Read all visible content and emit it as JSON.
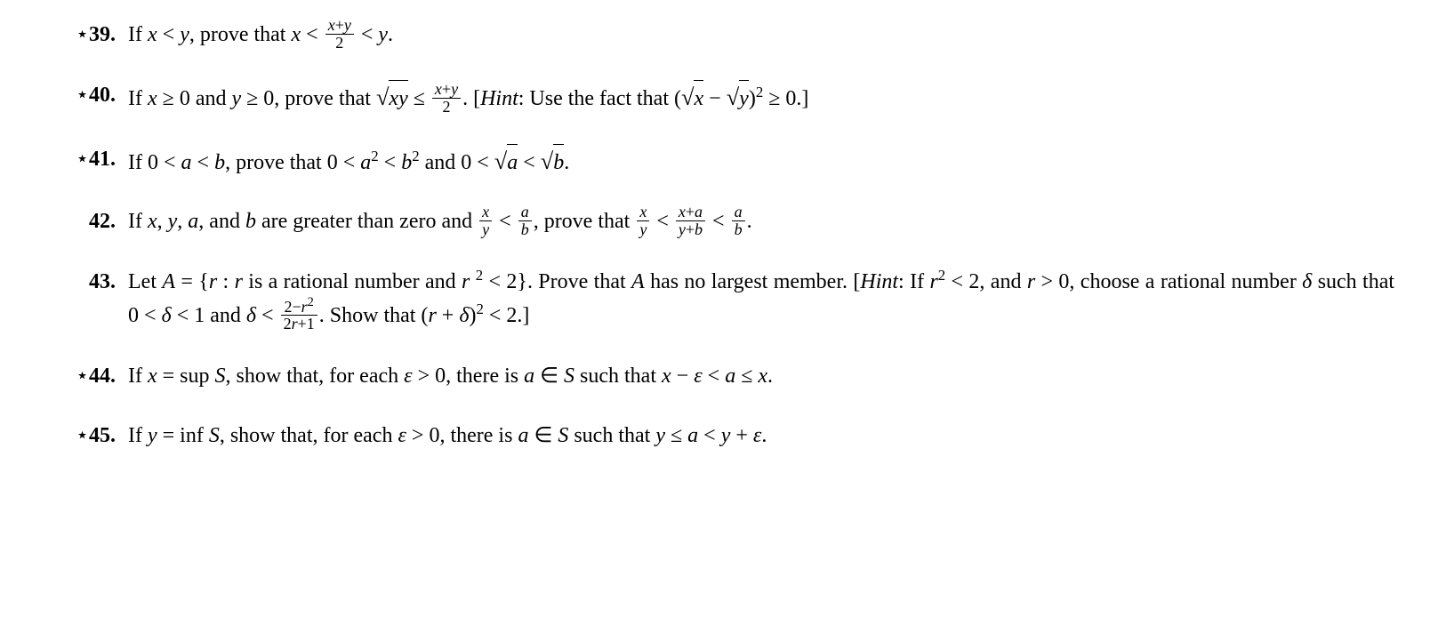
{
  "problems": [
    {
      "id": 39,
      "starred": true,
      "number_label": "39.",
      "html": "If <span class='mv'>x</span> &lt; <span class='mv'>y</span>, prove that <span class='mv'>x</span> &lt; <span class='frac'><span class='top'><span class=\"mv\">x</span>+<span class=\"mv\">y</span></span><span class='bot'>2</span></span> &lt; <span class='mv'>y</span>."
    },
    {
      "id": 40,
      "starred": true,
      "number_label": "40.",
      "html": "If <span class='mv'>x</span> &ge; 0 and <span class='mv'>y</span> &ge; 0, prove that <span class='sqrt'><span class='sqrt-sym'>&radic;</span><span class='sqrt-arg'><span class=\"mv\">xy</span></span></span> &le; <span class='frac'><span class='top'><span class=\"mv\">x</span>+<span class=\"mv\">y</span></span><span class='bot'>2</span></span>. [<span class='italic'>Hint</span>: Use the fact that (<span class='sqrt'><span class='sqrt-sym'>&radic;</span><span class='sqrt-arg'><span class=\"mv\">x</span></span></span> &minus; <span class='sqrt'><span class='sqrt-sym'>&radic;</span><span class='sqrt-arg'><span class=\"mv\">y</span></span></span>)<sup>2</sup> &ge; 0.]"
    },
    {
      "id": 41,
      "starred": true,
      "number_label": "41.",
      "html": "If 0 &lt; <span class='mv'>a</span> &lt; <span class='mv'>b</span>, prove that 0 &lt; <span class='mv'>a</span><sup>2</sup> &lt; <span class='mv'>b</span><sup>2</sup> and 0 &lt; <span class='sqrt'><span class='sqrt-sym'>&radic;</span><span class='sqrt-arg'><span class=\"mv\">a</span></span></span> &lt; <span class='sqrt'><span class='sqrt-sym'>&radic;</span><span class='sqrt-arg'><span class=\"mv\">b</span></span></span>."
    },
    {
      "id": 42,
      "starred": false,
      "number_label": "42.",
      "html": "If <span class='mv'>x</span>, <span class='mv'>y</span>, <span class='mv'>a</span>, and <span class='mv'>b</span> are greater than zero and <span class='frac'><span class='top'><span class=\"mv\">x</span></span><span class='bot'><span class=\"mv\">y</span></span></span> &lt; <span class='frac'><span class='top'><span class=\"mv\">a</span></span><span class='bot'><span class=\"mv\">b</span></span></span>, prove that <span class='frac'><span class='top'><span class=\"mv\">x</span></span><span class='bot'><span class=\"mv\">y</span></span></span> &lt; <span class='frac'><span class='top'><span class=\"mv\">x</span>+<span class=\"mv\">a</span></span><span class='bot'><span class=\"mv\">y</span>+<span class=\"mv\">b</span></span></span> &lt; <span class='frac'><span class='top'><span class=\"mv\">a</span></span><span class='bot'><span class=\"mv\">b</span></span></span>."
    },
    {
      "id": 43,
      "starred": false,
      "number_label": "43.",
      "html": "Let <span class='mv'>A</span> = {<span class='mv'>r</span> : <span class='mv'>r</span> is a rational number and <span class='mv'>r</span>&nbsp;<sup>2</sup> &lt; 2}. Prove that <span class='mv'>A</span> has no largest member. [<span class='italic'>Hint</span>: If <span class='mv'>r</span><sup>2</sup> &lt; 2, and <span class='mv'>r</span> &gt; 0, choose a rational number <span class='mv'>&delta;</span> such that 0 &lt; <span class='mv'>&delta;</span> &lt; 1 and <span class='mv'>&delta;</span> &lt; <span class='frac'><span class='top'>2&minus;<span class=\"mv\">r</span><sup style=\"font-size:0.8em;\">2</sup></span><span class='bot'>2<span class=\"mv\">r</span>+1</span></span>. Show that (<span class='mv'>r</span> + <span class='mv'>&delta;</span>)<sup>2</sup> &lt; 2.]"
    },
    {
      "id": 44,
      "starred": true,
      "number_label": "44.",
      "html": "If <span class='mv'>x</span> = sup <span class='mv'>S</span>, show that, for each <span class='mv'>&epsilon;</span> &gt; 0, there is <span class='mv'>a</span> &isin; <span class='mv'>S</span> such that <span class='mv'>x</span> &minus; <span class='mv'>&epsilon;</span> &lt; <span class='mv'>a</span> &le; <span class='mv'>x</span>."
    },
    {
      "id": 45,
      "starred": true,
      "number_label": "45.",
      "html": "If <span class='mv'>y</span> = inf <span class='mv'>S</span>, show that, for each <span class='mv'>&epsilon;</span> &gt; 0, there is <span class='mv'>a</span> &isin; <span class='mv'>S</span> such that <span class='mv'>y</span> &le; <span class='mv'>a</span> &lt; <span class='mv'>y</span> + <span class='mv'>&epsilon;</span>."
    }
  ],
  "style": {
    "body_font_family": "Times New Roman",
    "body_font_size_pt": 18,
    "text_color": "#000000",
    "background_color": "#ffffff",
    "star_glyph": "⋆",
    "number_font_weight": "bold",
    "line_height": 1.6
  }
}
